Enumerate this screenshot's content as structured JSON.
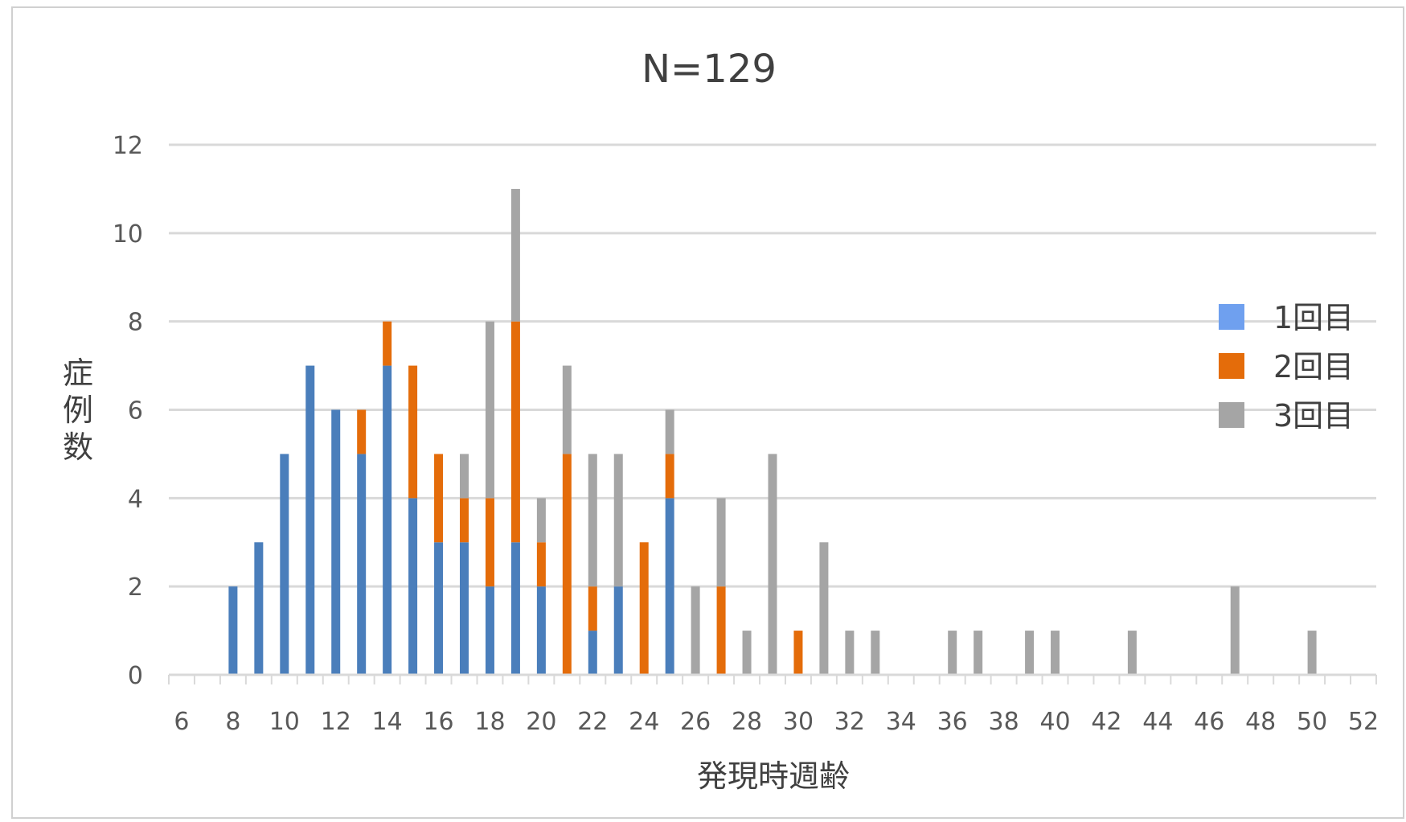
{
  "chart_data": {
    "type": "bar",
    "stacked": true,
    "title": "N=129",
    "xlabel": "発現時週齢",
    "ylabel": "症例数",
    "x": [
      6,
      7,
      8,
      9,
      10,
      11,
      12,
      13,
      14,
      15,
      16,
      17,
      18,
      19,
      20,
      21,
      22,
      23,
      24,
      25,
      26,
      27,
      28,
      29,
      30,
      31,
      32,
      33,
      34,
      35,
      36,
      37,
      38,
      39,
      40,
      41,
      42,
      43,
      44,
      45,
      46,
      47,
      48,
      49,
      50,
      51,
      52
    ],
    "x_tick_labels": [
      "6",
      "8",
      "10",
      "12",
      "14",
      "16",
      "18",
      "20",
      "22",
      "24",
      "26",
      "28",
      "30",
      "32",
      "34",
      "36",
      "38",
      "40",
      "42",
      "44",
      "46",
      "48",
      "50",
      "52"
    ],
    "ylim": [
      0,
      12
    ],
    "y_tick_labels": [
      "0",
      "2",
      "4",
      "6",
      "8",
      "10",
      "12"
    ],
    "grid": true,
    "legend_position": "right",
    "series": [
      {
        "name": "1回目",
        "color": "#4a7ebb",
        "legend_color": "#6fa0ef",
        "values": [
          0,
          0,
          2,
          3,
          5,
          7,
          6,
          5,
          7,
          4,
          3,
          3,
          2,
          3,
          2,
          0,
          1,
          2,
          0,
          4,
          0,
          0,
          0,
          0,
          0,
          0,
          0,
          0,
          0,
          0,
          0,
          0,
          0,
          0,
          0,
          0,
          0,
          0,
          0,
          0,
          0,
          0,
          0,
          0,
          0,
          0,
          0
        ]
      },
      {
        "name": "2回目",
        "color": "#e46c0a",
        "values": [
          0,
          0,
          0,
          0,
          0,
          0,
          0,
          1,
          1,
          3,
          2,
          1,
          2,
          5,
          1,
          5,
          1,
          0,
          3,
          1,
          0,
          2,
          0,
          0,
          1,
          0,
          0,
          0,
          0,
          0,
          0,
          0,
          0,
          0,
          0,
          0,
          0,
          0,
          0,
          0,
          0,
          0,
          0,
          0,
          0,
          0,
          0
        ]
      },
      {
        "name": "3回目",
        "color": "#a5a5a5",
        "values": [
          0,
          0,
          0,
          0,
          0,
          0,
          0,
          0,
          0,
          0,
          0,
          1,
          4,
          3,
          1,
          2,
          3,
          3,
          0,
          1,
          2,
          2,
          1,
          5,
          0,
          3,
          1,
          1,
          0,
          0,
          1,
          1,
          0,
          1,
          1,
          0,
          0,
          1,
          0,
          0,
          0,
          2,
          0,
          0,
          1,
          0,
          0
        ]
      }
    ]
  }
}
